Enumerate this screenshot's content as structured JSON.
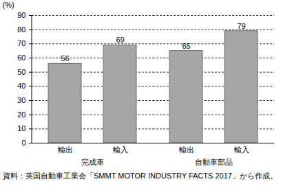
{
  "chart_data": {
    "type": "bar",
    "ylabel": "(%)",
    "categories": [
      "輸出",
      "輸入",
      "輸出",
      "輸入"
    ],
    "category_groups": [
      "完成車",
      "完成車",
      "自動車部品",
      "自動車部品"
    ],
    "values": [
      56,
      69,
      65,
      79
    ],
    "color": "#a6a6a6",
    "ylim": [
      0,
      90
    ],
    "yticks": [
      0,
      10,
      20,
      30,
      40,
      50,
      60,
      70,
      80,
      90
    ],
    "grid": true,
    "data_labels": true,
    "source": "資料：英国自動車工業会「SMMT MOTOR INDUSTRY FACTS 2017」から作成。"
  }
}
